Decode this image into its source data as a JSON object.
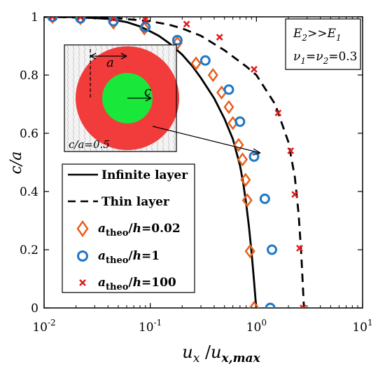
{
  "chart_data": {
    "type": "line",
    "xscale": "log",
    "xlim": [
      0.01,
      10
    ],
    "ylim": [
      0,
      1
    ],
    "xticks": [
      {
        "value": 0.01,
        "base": "10",
        "exp": "-2"
      },
      {
        "value": 0.1,
        "base": "10",
        "exp": "-1"
      },
      {
        "value": 1,
        "base": "10",
        "exp": "0"
      },
      {
        "value": 10,
        "base": "10",
        "exp": "1"
      }
    ],
    "yticks": [
      "0",
      "0.2",
      "0.4",
      "0.6",
      "0.8",
      "1"
    ],
    "ylabel": "c/a",
    "xlabel": {
      "u": "u",
      "sub1": "x",
      "slash": " /",
      "u2": "u",
      "sub2": "x,max"
    },
    "annotation_box": {
      "line1": "E2>>E1",
      "line2": "ν1=ν2=0.3"
    },
    "inset": {
      "label_a": "a",
      "label_c": "c",
      "caption": "c/a=0.5",
      "colors": {
        "outer": "#f23b3b",
        "inner": "#19e83a"
      }
    },
    "legend": {
      "position": "bottom-left",
      "entries": [
        "Infinite layer",
        "Thin layer",
        "atheo/h=0.02",
        "atheo/h=1",
        "atheo/h=100"
      ]
    },
    "series": [
      {
        "name": "Infinite layer",
        "style": "solid",
        "color": "#000000",
        "x": [
          0.01,
          0.02,
          0.04,
          0.06,
          0.08,
          0.1,
          0.12,
          0.15,
          0.2,
          0.25,
          0.3,
          0.4,
          0.5,
          0.6,
          0.7,
          0.75,
          0.8,
          0.85,
          0.9,
          0.95,
          0.98,
          1.0
        ],
        "y": [
          1.0,
          0.999,
          0.993,
          0.982,
          0.967,
          0.95,
          0.935,
          0.91,
          0.87,
          0.83,
          0.79,
          0.72,
          0.65,
          0.58,
          0.49,
          0.43,
          0.36,
          0.28,
          0.19,
          0.09,
          0.03,
          0.0
        ]
      },
      {
        "name": "Thin layer",
        "style": "dashed",
        "color": "#000000",
        "x": [
          0.01,
          0.05,
          0.1,
          0.15,
          0.2,
          0.3,
          0.5,
          0.8,
          1.0,
          1.5,
          2.0,
          2.3,
          2.5,
          2.65,
          2.75,
          2.8
        ],
        "y": [
          1.0,
          0.995,
          0.985,
          0.973,
          0.96,
          0.935,
          0.885,
          0.83,
          0.8,
          0.7,
          0.57,
          0.45,
          0.32,
          0.18,
          0.06,
          0.0
        ]
      },
      {
        "name": "atheo/h=0.02",
        "marker": "diamond",
        "color": "#e8601c",
        "x": [
          0.012,
          0.022,
          0.045,
          0.088,
          0.18,
          0.27,
          0.39,
          0.47,
          0.55,
          0.6,
          0.68,
          0.74,
          0.79,
          0.82,
          0.87,
          0.95
        ],
        "y": [
          1.0,
          0.995,
          0.98,
          0.96,
          0.91,
          0.84,
          0.8,
          0.74,
          0.69,
          0.635,
          0.56,
          0.51,
          0.44,
          0.37,
          0.195,
          0.0
        ]
      },
      {
        "name": "atheo/h=1",
        "marker": "circle",
        "color": "#1f77c8",
        "x": [
          0.012,
          0.022,
          0.045,
          0.09,
          0.18,
          0.33,
          0.55,
          0.7,
          0.95,
          1.2,
          1.4,
          1.35
        ],
        "y": [
          1.0,
          0.995,
          0.985,
          0.965,
          0.92,
          0.85,
          0.75,
          0.64,
          0.52,
          0.375,
          0.2,
          0.0
        ]
      },
      {
        "name": "atheo/h=100",
        "marker": "cross",
        "color": "#e11919",
        "x": [
          0.012,
          0.022,
          0.045,
          0.09,
          0.22,
          0.45,
          0.95,
          1.6,
          2.1,
          2.3,
          2.55,
          2.75
        ],
        "y": [
          1.0,
          0.999,
          0.995,
          0.99,
          0.975,
          0.93,
          0.82,
          0.67,
          0.54,
          0.39,
          0.205,
          0.0
        ]
      }
    ]
  }
}
